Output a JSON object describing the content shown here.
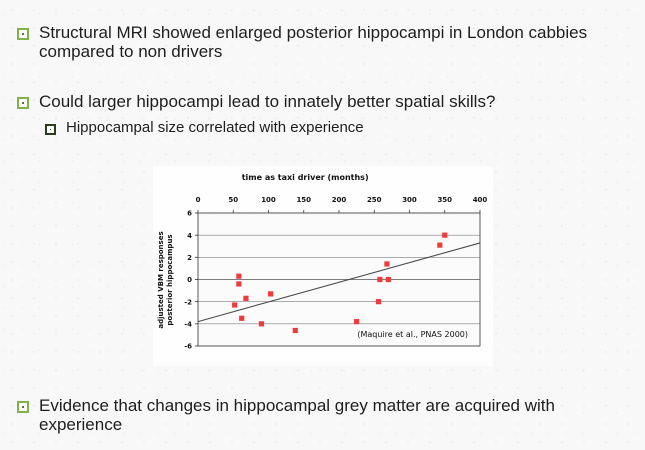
{
  "slide": {
    "bullets": [
      {
        "text_lines": [
          "Structural MRI showed enlarged posterior hippocampi in London cabbies",
          "compared to non drivers"
        ]
      },
      {
        "text": "Could larger hippocampi lead to innately better spatial skills?"
      },
      {
        "text": "Hippocampal size correlated with experience"
      },
      {
        "text_lines": [
          "Evidence that changes in hippocampal grey matter are acquired with",
          "experience"
        ]
      }
    ],
    "citation": "(Maquire et al., PNAS 2000)"
  },
  "colors": {
    "bullet_outer": "#7fb24b",
    "bullet_inner": "#4f7f2b",
    "point": "#ef3b3b",
    "grid": "#555555",
    "fit_line": "#4b4b4b"
  },
  "chart_data": {
    "type": "scatter",
    "title": "time as taxi driver (months)",
    "xlabel": "",
    "ylabel": "adjusted VBM responses posterior hippocampus",
    "y_label_lines": [
      "adjusted VBM responses",
      "posterior hippocampus"
    ],
    "xlim": [
      0,
      400
    ],
    "ylim": [
      -6,
      6
    ],
    "x_ticks": [
      0,
      50,
      100,
      150,
      200,
      250,
      300,
      350,
      400
    ],
    "y_ticks": [
      6,
      4,
      2,
      0,
      -2,
      -4,
      -6
    ],
    "grid": true,
    "points": [
      {
        "x": 52,
        "y": -2.3
      },
      {
        "x": 58,
        "y": 0.3
      },
      {
        "x": 58,
        "y": -0.4
      },
      {
        "x": 62,
        "y": -3.5
      },
      {
        "x": 68,
        "y": -1.7
      },
      {
        "x": 90,
        "y": -4.0
      },
      {
        "x": 103,
        "y": -1.3
      },
      {
        "x": 138,
        "y": -4.6
      },
      {
        "x": 225,
        "y": -3.8
      },
      {
        "x": 256,
        "y": -2.0
      },
      {
        "x": 258,
        "y": 0.0
      },
      {
        "x": 268,
        "y": 1.4
      },
      {
        "x": 270,
        "y": 0.0
      },
      {
        "x": 343,
        "y": 3.1
      },
      {
        "x": 350,
        "y": 4.0
      }
    ],
    "fit_line": {
      "x": [
        0,
        400
      ],
      "y": [
        -3.8,
        3.3
      ]
    }
  }
}
